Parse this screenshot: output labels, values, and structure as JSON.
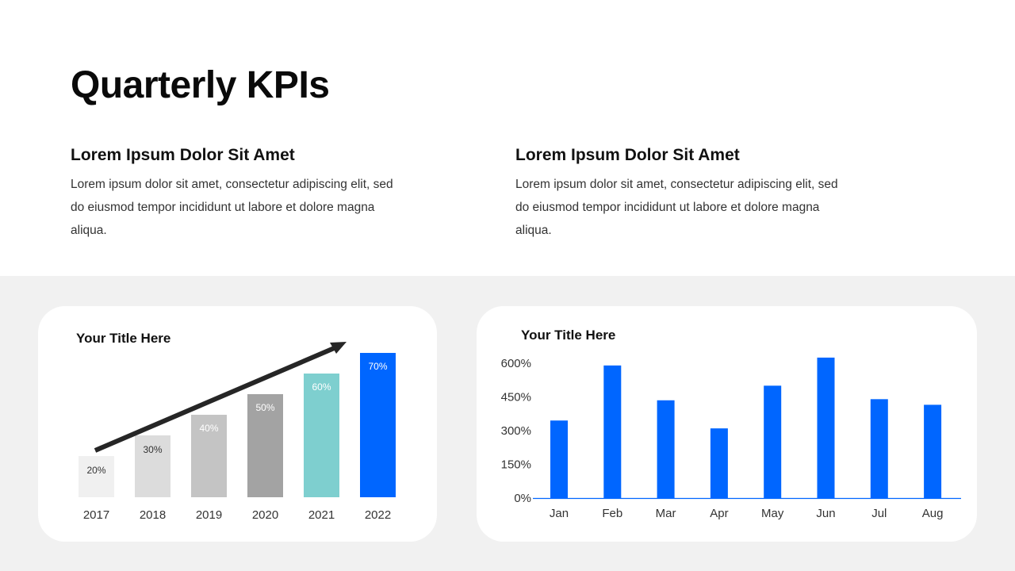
{
  "header": {
    "title": "Quarterly KPIs"
  },
  "sections": [
    {
      "heading": "Lorem Ipsum Dolor Sit Amet",
      "body": "Lorem ipsum dolor sit amet, consectetur adipiscing elit, sed do eiusmod tempor incididunt ut labore et dolore magna aliqua."
    },
    {
      "heading": "Lorem Ipsum Dolor Sit Amet",
      "body": "Lorem ipsum dolor sit amet, consectetur adipiscing elit, sed do eiusmod tempor incididunt ut labore et dolore magna aliqua."
    }
  ],
  "colors": {
    "accent": "#0066ff",
    "teal": "#7ecfcf",
    "grays": [
      "#f0f0f0",
      "#dcdcdc",
      "#c4c4c4",
      "#a3a3a3"
    ],
    "arrow": "#262626",
    "panel_bg": "#f1f1f1"
  },
  "chart_data": [
    {
      "type": "bar",
      "title": "Your Title Here",
      "categories": [
        "2017",
        "2018",
        "2019",
        "2020",
        "2021",
        "2022"
      ],
      "values": [
        20,
        30,
        40,
        50,
        60,
        70
      ],
      "data_labels": [
        "20%",
        "30%",
        "40%",
        "50%",
        "60%",
        "70%"
      ],
      "ylim": [
        0,
        70
      ],
      "annotation": "upward trend arrow",
      "grid": false
    },
    {
      "type": "bar",
      "title": "Your Title Here",
      "categories": [
        "Jan",
        "Feb",
        "Mar",
        "Apr",
        "May",
        "Jun",
        "Jul",
        "Aug"
      ],
      "values": [
        345,
        590,
        435,
        310,
        500,
        625,
        440,
        415
      ],
      "yticks": [
        "0%",
        "150%",
        "300%",
        "450%",
        "600%"
      ],
      "ytick_values": [
        0,
        150,
        300,
        450,
        600
      ],
      "ylim": [
        0,
        600
      ],
      "grid": false
    }
  ]
}
